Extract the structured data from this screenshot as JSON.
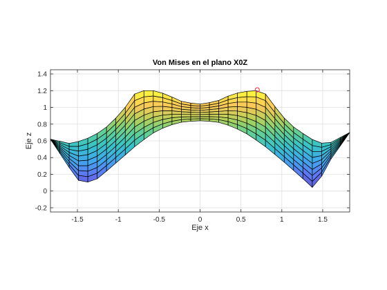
{
  "chart_data": {
    "type": "surface",
    "title": "Von Mises en el plano X0Z",
    "xlabel": "Eje x",
    "ylabel": "Eje z",
    "xlim": [
      -1.83,
      1.83
    ],
    "ylim": [
      -0.25,
      1.45
    ],
    "xticks": [
      -1.5,
      -1,
      -0.5,
      0,
      0.5,
      1,
      1.5
    ],
    "xtick_labels": [
      "-1.5",
      "-1",
      "-0.5",
      "0",
      "0.5",
      "1",
      "1.5"
    ],
    "yticks": [
      -0.2,
      0,
      0.2,
      0.4,
      0.6,
      0.8,
      1,
      1.2,
      1.4
    ],
    "ytick_labels": [
      "-0.2",
      "0",
      "0.2",
      "0.4",
      "0.6",
      "0.8",
      "1",
      "1.2",
      "1.4"
    ],
    "grid": true,
    "colormap": "parula",
    "edge_color": "#000000",
    "face_alpha": 0.85,
    "top_profile": {
      "x": [
        -1.83,
        -1.6,
        -1.45,
        -1.3,
        -1.15,
        -1.0,
        -0.9,
        -0.85,
        -0.7,
        -0.55,
        -0.4,
        -0.2,
        0.0,
        0.2,
        0.4,
        0.55,
        0.7,
        0.85,
        0.9,
        1.0,
        1.15,
        1.3,
        1.45,
        1.6,
        1.83
      ],
      "z": [
        0.62,
        0.57,
        0.6,
        0.66,
        0.76,
        0.9,
        1.02,
        1.14,
        1.2,
        1.2,
        1.15,
        1.06,
        1.04,
        1.07,
        1.16,
        1.19,
        1.2,
        1.14,
        1.03,
        0.9,
        0.76,
        0.66,
        0.57,
        0.58,
        0.7
      ]
    },
    "bottom_profile": {
      "x": [
        -1.83,
        -1.6,
        -1.45,
        -1.25,
        -1.0,
        -0.8,
        -0.6,
        -0.4,
        -0.2,
        0.0,
        0.2,
        0.4,
        0.6,
        0.8,
        1.0,
        1.2,
        1.4,
        1.6,
        1.83
      ],
      "z": [
        0.62,
        0.28,
        0.08,
        0.15,
        0.36,
        0.53,
        0.68,
        0.78,
        0.83,
        0.84,
        0.83,
        0.77,
        0.67,
        0.53,
        0.37,
        0.2,
        0.02,
        0.38,
        0.7
      ]
    },
    "marker": {
      "x": 0.7,
      "z": 1.21,
      "color": "#e8414b"
    }
  }
}
